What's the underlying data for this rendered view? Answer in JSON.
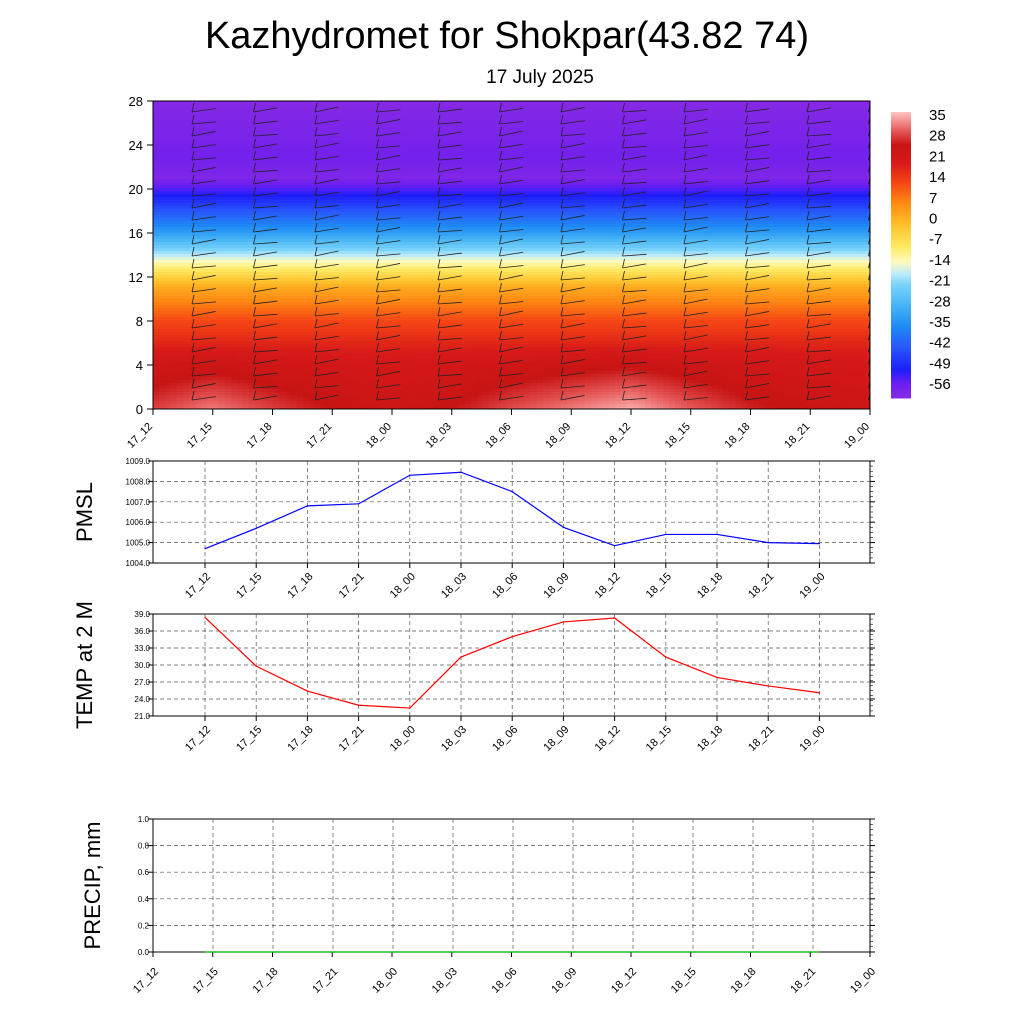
{
  "title": "Kazhydromet for Shokpar(43.82 74)",
  "subtitle": "17 July 2025",
  "time_labels": [
    "17_12",
    "17_15",
    "17_18",
    "17_21",
    "18_00",
    "18_03",
    "18_06",
    "18_09",
    "18_12",
    "18_15",
    "18_18",
    "18_21",
    "19_00"
  ],
  "chart_data": [
    {
      "type": "heatmap",
      "variable": "temperature cross-section with wind barbs",
      "x": [
        "17_12",
        "17_15",
        "17_18",
        "17_21",
        "18_00",
        "18_03",
        "18_06",
        "18_09",
        "18_12",
        "18_15",
        "18_18",
        "18_21",
        "19_00"
      ],
      "y_ticks": [
        0,
        4,
        8,
        12,
        16,
        20,
        24,
        28
      ],
      "ylim": [
        0,
        28
      ],
      "colorbar_labels": [
        "35",
        "28",
        "21",
        "14",
        "7",
        "0",
        "-7",
        "-14",
        "-21",
        "-28",
        "-35",
        "-42",
        "-49",
        "-56"
      ],
      "colorbar_range": [
        -60,
        38
      ],
      "surface_values": [
        30,
        34,
        30,
        27,
        25,
        27,
        31,
        34,
        37,
        32,
        28,
        26,
        25
      ],
      "level_values": [
        {
          "level": 0,
          "value": 30
        },
        {
          "level": 4,
          "value": 24
        },
        {
          "level": 8,
          "value": 14
        },
        {
          "level": 11,
          "value": 3
        },
        {
          "level": 13,
          "value": -10
        },
        {
          "level": 16,
          "value": -32
        },
        {
          "level": 19,
          "value": -48
        },
        {
          "level": 21,
          "value": -58
        },
        {
          "level": 23,
          "value": -56
        },
        {
          "level": 28,
          "value": -59
        }
      ]
    },
    {
      "type": "line",
      "ylabel": "PMSL",
      "x": [
        "17_12",
        "17_15",
        "17_18",
        "17_21",
        "18_00",
        "18_03",
        "18_06",
        "18_09",
        "18_12",
        "18_15",
        "18_18",
        "18_21",
        "19_00"
      ],
      "yticks": [
        "1004.0",
        "1005.0",
        "1006.0",
        "1007.0",
        "1008.0",
        "1009.0"
      ],
      "ylim": [
        1004.0,
        1009.0
      ],
      "color": "#0000ff",
      "series": [
        {
          "values": [
            1004.7,
            1005.7,
            1006.8,
            1006.9,
            1008.3,
            1008.45,
            1007.5,
            1005.75,
            1004.85,
            1005.4,
            1005.4,
            1005.0,
            1004.95
          ]
        }
      ]
    },
    {
      "type": "line",
      "ylabel": "TEMP at 2 M",
      "x": [
        "17_12",
        "17_15",
        "17_18",
        "17_21",
        "18_00",
        "18_03",
        "18_06",
        "18_09",
        "18_12",
        "18_15",
        "18_18",
        "18_21",
        "19_00"
      ],
      "yticks": [
        "21.0",
        "24.0",
        "27.0",
        "30.0",
        "33.0",
        "36.0",
        "39.0"
      ],
      "ylim": [
        21.0,
        39.0
      ],
      "color": "#ff0000",
      "series": [
        {
          "values": [
            38.4,
            29.8,
            25.4,
            22.9,
            22.4,
            31.4,
            35.0,
            37.6,
            38.3,
            31.4,
            27.8,
            26.3,
            25.1
          ]
        }
      ]
    },
    {
      "type": "line",
      "ylabel": "PRECIP, mm",
      "x": [
        "17_12",
        "17_15",
        "17_18",
        "17_21",
        "18_00",
        "18_03",
        "18_06",
        "18_09",
        "18_12",
        "18_15",
        "18_18",
        "18_21",
        "19_00"
      ],
      "yticks": [
        "0.0",
        "0.2",
        "0.4",
        "0.6",
        "0.8",
        "1.0"
      ],
      "ylim": [
        0.0,
        1.0
      ],
      "color": "#00aa00",
      "series": [
        {
          "values": [
            0,
            0,
            0,
            0,
            0,
            0,
            0,
            0,
            0,
            0,
            0,
            0,
            0
          ]
        }
      ]
    }
  ]
}
